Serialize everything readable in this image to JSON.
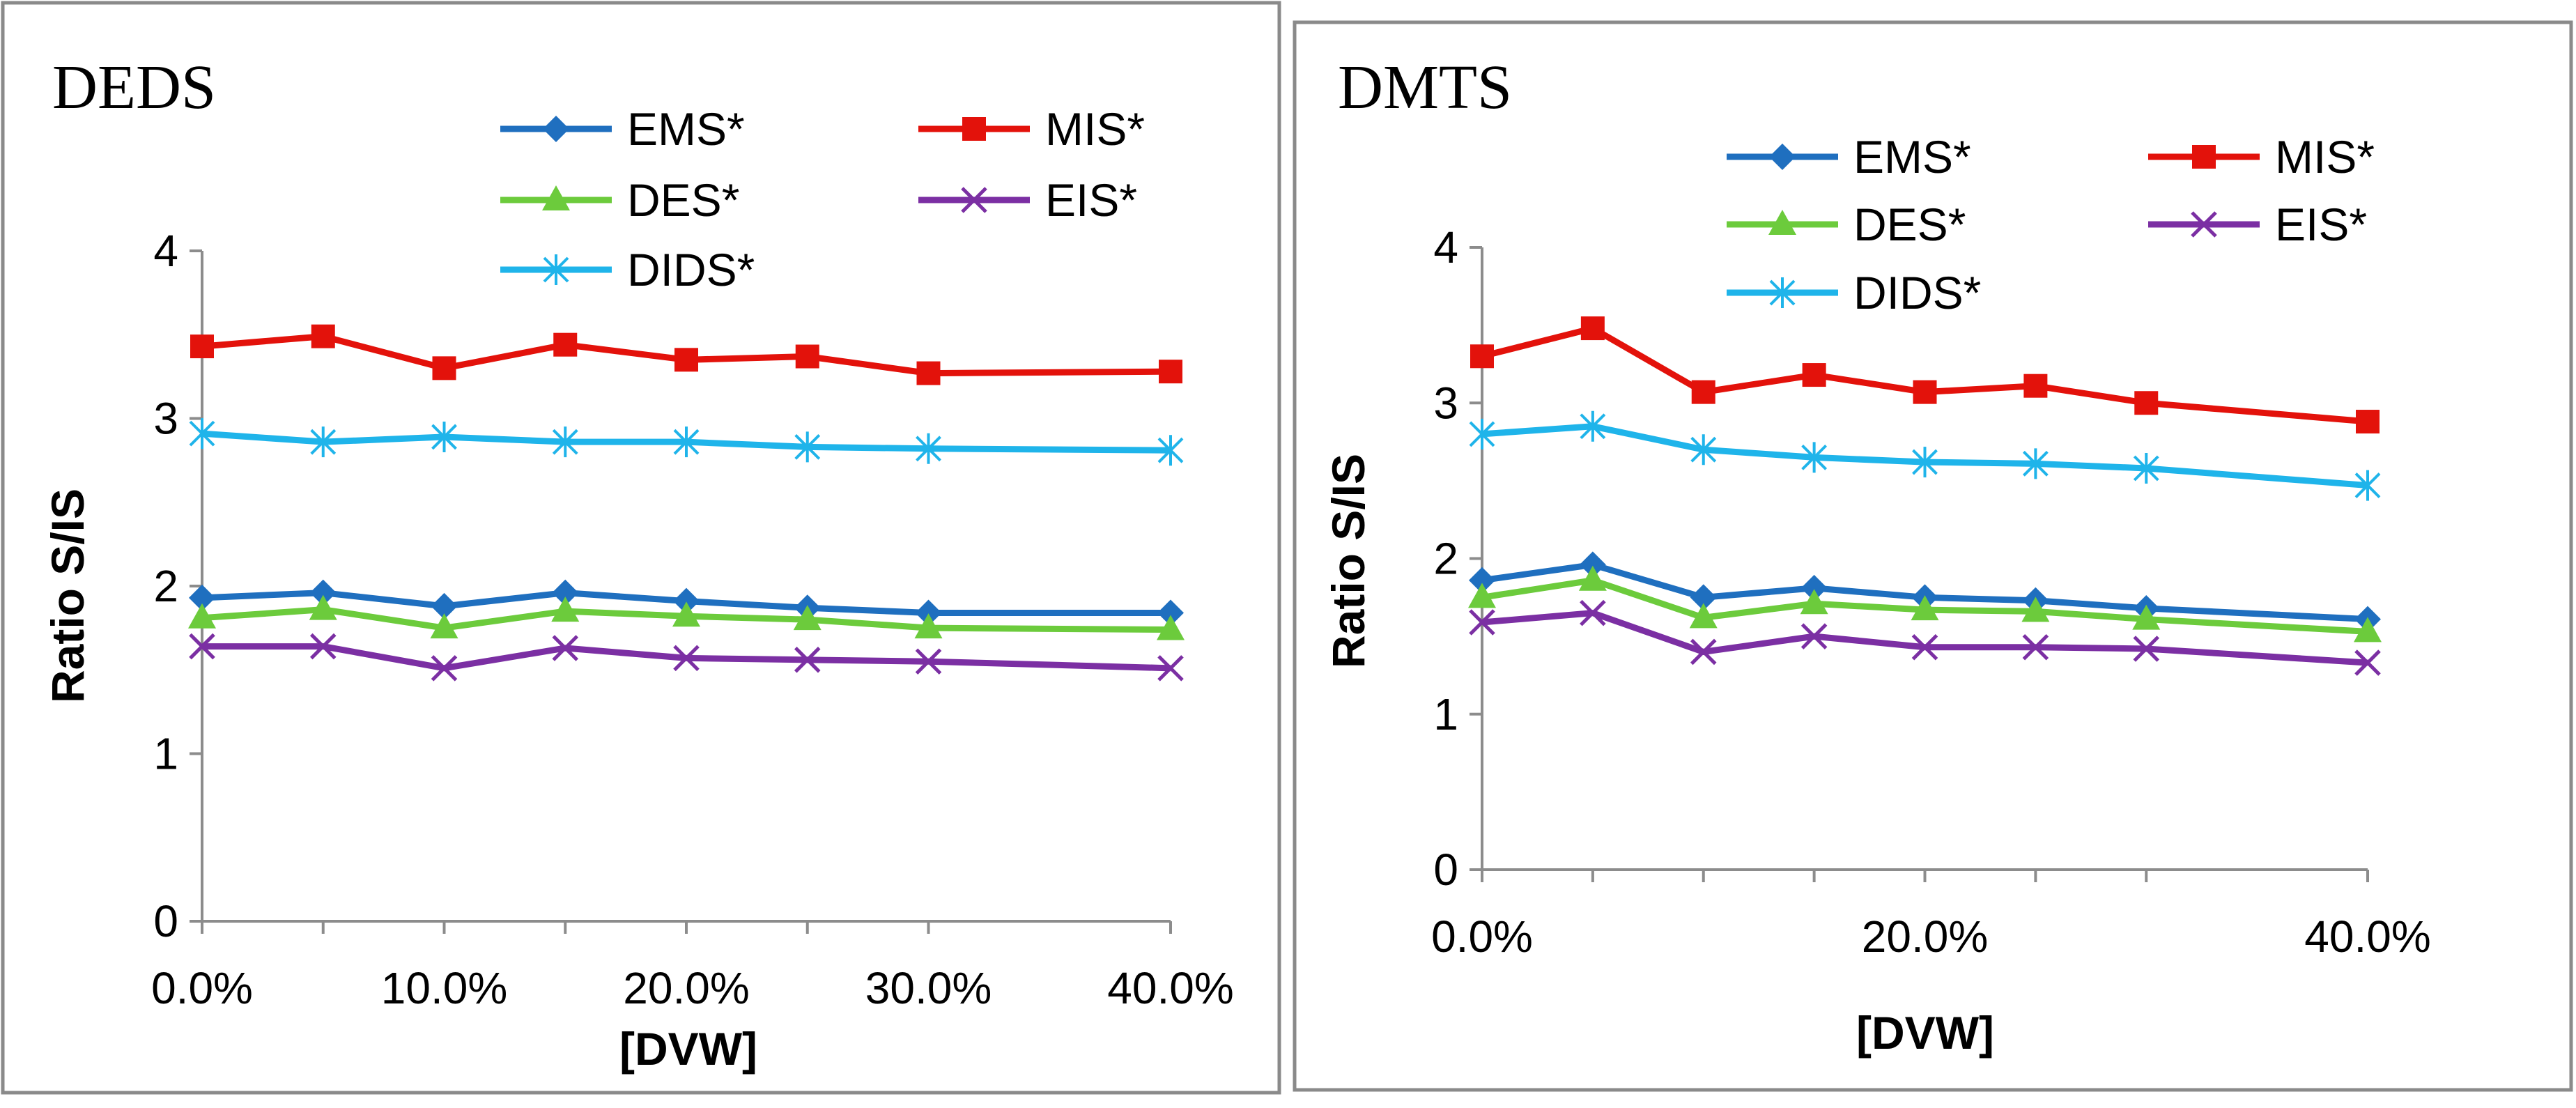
{
  "chart_data": [
    {
      "type": "line",
      "title": "DEDS",
      "xlabel": "[DVW]",
      "ylabel": "Ratio S/IS",
      "x": [
        0,
        5,
        10,
        15,
        20,
        25,
        30,
        40
      ],
      "xticks": [
        0,
        10,
        20,
        30,
        40
      ],
      "xtick_labels": [
        "0.0%",
        "10.0%",
        "20.0%",
        "30.0%",
        "40.0%"
      ],
      "xlim": [
        0,
        40
      ],
      "ylim": [
        0,
        4
      ],
      "yticks": [
        0,
        1,
        2,
        3,
        4
      ],
      "ytick_labels": [
        "0",
        "1",
        "2",
        "3",
        "4"
      ],
      "legend_position": "top",
      "series": [
        {
          "name": "EMS*",
          "color": "#1F6FBF",
          "marker": "diamond",
          "values": [
            1.93,
            1.96,
            1.88,
            1.96,
            1.91,
            1.87,
            1.84,
            1.84
          ]
        },
        {
          "name": "MIS*",
          "color": "#E3120B",
          "marker": "square",
          "values": [
            3.43,
            3.49,
            3.3,
            3.44,
            3.35,
            3.37,
            3.27,
            3.28
          ]
        },
        {
          "name": "DES*",
          "color": "#6CCB3C",
          "marker": "triangle",
          "values": [
            1.81,
            1.86,
            1.75,
            1.85,
            1.82,
            1.8,
            1.75,
            1.74
          ]
        },
        {
          "name": "EIS*",
          "color": "#7B2FA3",
          "marker": "x",
          "values": [
            1.64,
            1.64,
            1.51,
            1.63,
            1.57,
            1.56,
            1.55,
            1.51
          ]
        },
        {
          "name": "DIDS*",
          "color": "#1FB4EA",
          "marker": "star",
          "values": [
            2.91,
            2.86,
            2.89,
            2.86,
            2.86,
            2.83,
            2.82,
            2.81
          ]
        }
      ]
    },
    {
      "type": "line",
      "title": "DMTS",
      "xlabel": "[DVW]",
      "ylabel": "Ratio S/IS",
      "x": [
        0,
        5,
        10,
        15,
        20,
        25,
        30,
        40
      ],
      "xticks": [
        0,
        20,
        40
      ],
      "xtick_labels": [
        "0.0%",
        "20.0%",
        "40.0%"
      ],
      "xlim": [
        0,
        40
      ],
      "ylim": [
        0,
        4
      ],
      "yticks": [
        0,
        1,
        2,
        3,
        4
      ],
      "ytick_labels": [
        "0",
        "1",
        "2",
        "3",
        "4"
      ],
      "legend_position": "top",
      "series": [
        {
          "name": "EMS*",
          "color": "#1F6FBF",
          "marker": "diamond",
          "values": [
            1.86,
            1.96,
            1.75,
            1.81,
            1.75,
            1.73,
            1.68,
            1.61
          ]
        },
        {
          "name": "MIS*",
          "color": "#E3120B",
          "marker": "square",
          "values": [
            3.3,
            3.48,
            3.07,
            3.18,
            3.07,
            3.11,
            3.0,
            2.88
          ]
        },
        {
          "name": "DES*",
          "color": "#6CCB3C",
          "marker": "triangle",
          "values": [
            1.75,
            1.86,
            1.62,
            1.71,
            1.67,
            1.66,
            1.61,
            1.53
          ]
        },
        {
          "name": "EIS*",
          "color": "#7B2FA3",
          "marker": "x",
          "values": [
            1.59,
            1.65,
            1.4,
            1.5,
            1.43,
            1.43,
            1.42,
            1.33
          ]
        },
        {
          "name": "DIDS*",
          "color": "#1FB4EA",
          "marker": "star",
          "values": [
            2.8,
            2.85,
            2.7,
            2.65,
            2.62,
            2.61,
            2.58,
            2.47
          ]
        }
      ]
    }
  ]
}
